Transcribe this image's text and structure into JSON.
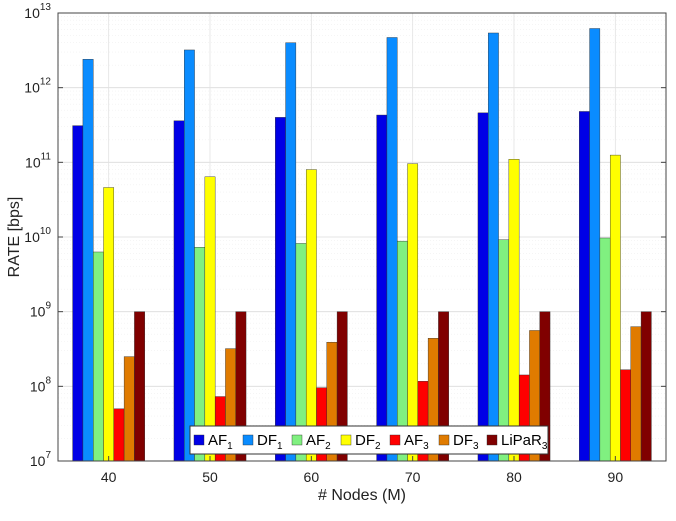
{
  "chart_data": {
    "type": "bar",
    "xlabel": "# Nodes (M)",
    "ylabel": "RATE [bps]",
    "y_scale": "log",
    "ylim": [
      10000000.0,
      10000000000000.0
    ],
    "y_tick_exponents": [
      "7",
      "8",
      "9",
      "10",
      "11",
      "12",
      "13"
    ],
    "y_tick_base": "10",
    "grid": true,
    "legend_position": "bottom-center",
    "categories": [
      "40",
      "50",
      "60",
      "70",
      "80",
      "90"
    ],
    "series": [
      {
        "name": "AF",
        "sub": "1",
        "color": "#0000e6",
        "values": [
          310000000000.0,
          360000000000.0,
          400000000000.0,
          430000000000.0,
          460000000000.0,
          480000000000.0
        ]
      },
      {
        "name": "DF",
        "sub": "1",
        "color": "#0a8cff",
        "values": [
          2400000000000.0,
          3200000000000.0,
          4000000000000.0,
          4700000000000.0,
          5400000000000.0,
          6200000000000.0
        ]
      },
      {
        "name": "AF",
        "sub": "2",
        "color": "#80f080",
        "values": [
          6300000000.0,
          7300000000.0,
          8200000000.0,
          8800000000.0,
          9200000000.0,
          9700000000.0
        ]
      },
      {
        "name": "DF",
        "sub": "2",
        "color": "#ffff00",
        "values": [
          46000000000.0,
          64000000000.0,
          80000000000.0,
          96000000000.0,
          110000000000.0,
          125000000000.0
        ]
      },
      {
        "name": "AF",
        "sub": "3",
        "color": "#ff0000",
        "values": [
          50000000.0,
          73000000.0,
          96000000.0,
          117000000.0,
          142000000.0,
          167000000.0
        ]
      },
      {
        "name": "DF",
        "sub": "3",
        "color": "#e07b00",
        "values": [
          250000000.0,
          320000000.0,
          390000000.0,
          440000000.0,
          560000000.0,
          630000000.0
        ]
      },
      {
        "name": "LiPaR",
        "sub": "3",
        "color": "#800000",
        "values": [
          1000000000.0,
          1000000000.0,
          1000000000.0,
          1000000000.0,
          1000000000.0,
          1000000000.0
        ]
      }
    ]
  }
}
